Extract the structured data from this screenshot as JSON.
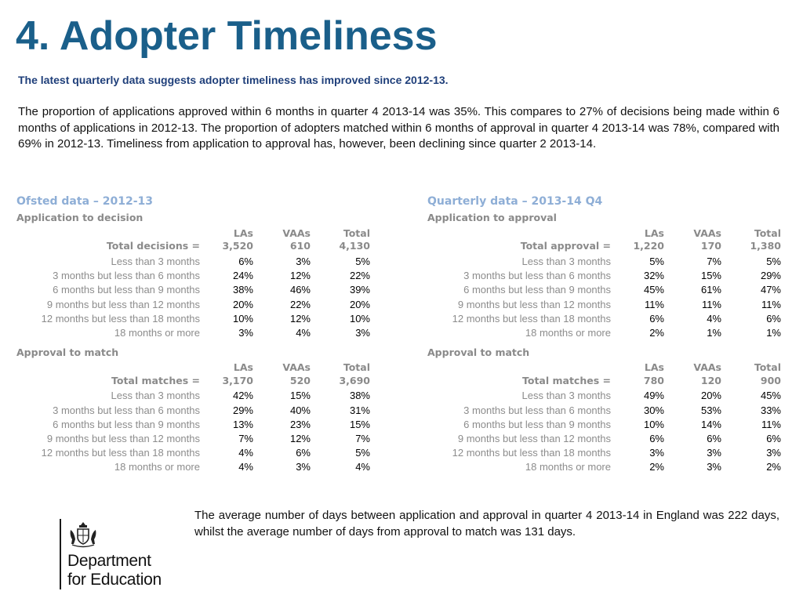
{
  "title": "4. Adopter Timeliness",
  "subtitle": "The latest quarterly data suggests adopter timeliness has improved since 2012-13.",
  "intro": "The proportion of applications approved within 6 months in quarter 4 2013-14 was 35%. This compares to 27% of decisions being made within 6 months of applications in 2012-13. The proportion of adopters matched within 6 months of approval in quarter 4 2013-14 was 78%, compared with 69% in 2012-13. Timeliness from application to approval has, however, been declining since quarter 2 2013-14.",
  "columns": {
    "las": "LAs",
    "vaas": "VAAs",
    "total": "Total"
  },
  "ofsted": {
    "heading": "Ofsted data – 2012-13",
    "decision": {
      "label": "Application to decision",
      "total_label": "Total decisions =",
      "totals": [
        "3,520",
        "610",
        "4,130"
      ],
      "rows": [
        {
          "label": "Less than 3 months",
          "values": [
            "6%",
            "3%",
            "5%"
          ]
        },
        {
          "label": "3 months but less than 6 months",
          "values": [
            "24%",
            "12%",
            "22%"
          ]
        },
        {
          "label": "6 months but less than 9 months",
          "values": [
            "38%",
            "46%",
            "39%"
          ]
        },
        {
          "label": "9 months but less than 12 months",
          "values": [
            "20%",
            "22%",
            "20%"
          ]
        },
        {
          "label": "12 months but less than 18 months",
          "values": [
            "10%",
            "12%",
            "10%"
          ]
        },
        {
          "label": "18 months or more",
          "values": [
            "3%",
            "4%",
            "3%"
          ]
        }
      ]
    },
    "match": {
      "label": "Approval to match",
      "total_label": "Total matches =",
      "totals": [
        "3,170",
        "520",
        "3,690"
      ],
      "rows": [
        {
          "label": "Less than 3 months",
          "values": [
            "42%",
            "15%",
            "38%"
          ]
        },
        {
          "label": "3 months  but less than 6 months",
          "values": [
            "29%",
            "40%",
            "31%"
          ]
        },
        {
          "label": "6 months but less than 9 months",
          "values": [
            "13%",
            "23%",
            "15%"
          ]
        },
        {
          "label": "9 months but less than 12 months",
          "values": [
            "7%",
            "12%",
            "7%"
          ]
        },
        {
          "label": "12 months but less than 18 months",
          "values": [
            "4%",
            "6%",
            "5%"
          ]
        },
        {
          "label": "18 months or more",
          "values": [
            "4%",
            "3%",
            "4%"
          ]
        }
      ]
    }
  },
  "quarterly": {
    "heading": "Quarterly data – 2013-14 Q4",
    "approval": {
      "label": "Application to approval",
      "total_label": "Total approval =",
      "totals": [
        "1,220",
        "170",
        "1,380"
      ],
      "rows": [
        {
          "label": "Less than 3 months",
          "values": [
            "5%",
            "7%",
            "5%"
          ]
        },
        {
          "label": "3 months but less than 6 months",
          "values": [
            "32%",
            "15%",
            "29%"
          ]
        },
        {
          "label": "6 months but less than 9 months",
          "values": [
            "45%",
            "61%",
            "47%"
          ]
        },
        {
          "label": "9 months but less than 12 months",
          "values": [
            "11%",
            "11%",
            "11%"
          ]
        },
        {
          "label": "12 months but less than 18 months",
          "values": [
            "6%",
            "4%",
            "6%"
          ]
        },
        {
          "label": "18 months or more",
          "values": [
            "2%",
            "1%",
            "1%"
          ]
        }
      ]
    },
    "match": {
      "label": "Approval to match",
      "total_label": "Total matches =",
      "totals": [
        "780",
        "120",
        "900"
      ],
      "rows": [
        {
          "label": "Less than 3 months",
          "values": [
            "49%",
            "20%",
            "45%"
          ]
        },
        {
          "label": "3 months  but less than 6 months",
          "values": [
            "30%",
            "53%",
            "33%"
          ]
        },
        {
          "label": "6 months but less than 9 months",
          "values": [
            "10%",
            "14%",
            "11%"
          ]
        },
        {
          "label": "9 months but less than 12 months",
          "values": [
            "6%",
            "6%",
            "6%"
          ]
        },
        {
          "label": "12 months but less than 18 months",
          "values": [
            "3%",
            "3%",
            "3%"
          ]
        },
        {
          "label": "18 months or more",
          "values": [
            "2%",
            "3%",
            "2%"
          ]
        }
      ]
    }
  },
  "closing": "The average number of days between application and approval in quarter 4 2013-14 in England was 222 days, whilst the average number of days from approval to match was 131 days.",
  "logo": {
    "line1": "Department",
    "line2": "for Education",
    "icon": "royal-crest-icon"
  },
  "colors": {
    "title": "#1a5f8a",
    "subtitle": "#1f3f7a",
    "section_heading": "#8eaed6",
    "label_grey": "#8c8c8c"
  }
}
